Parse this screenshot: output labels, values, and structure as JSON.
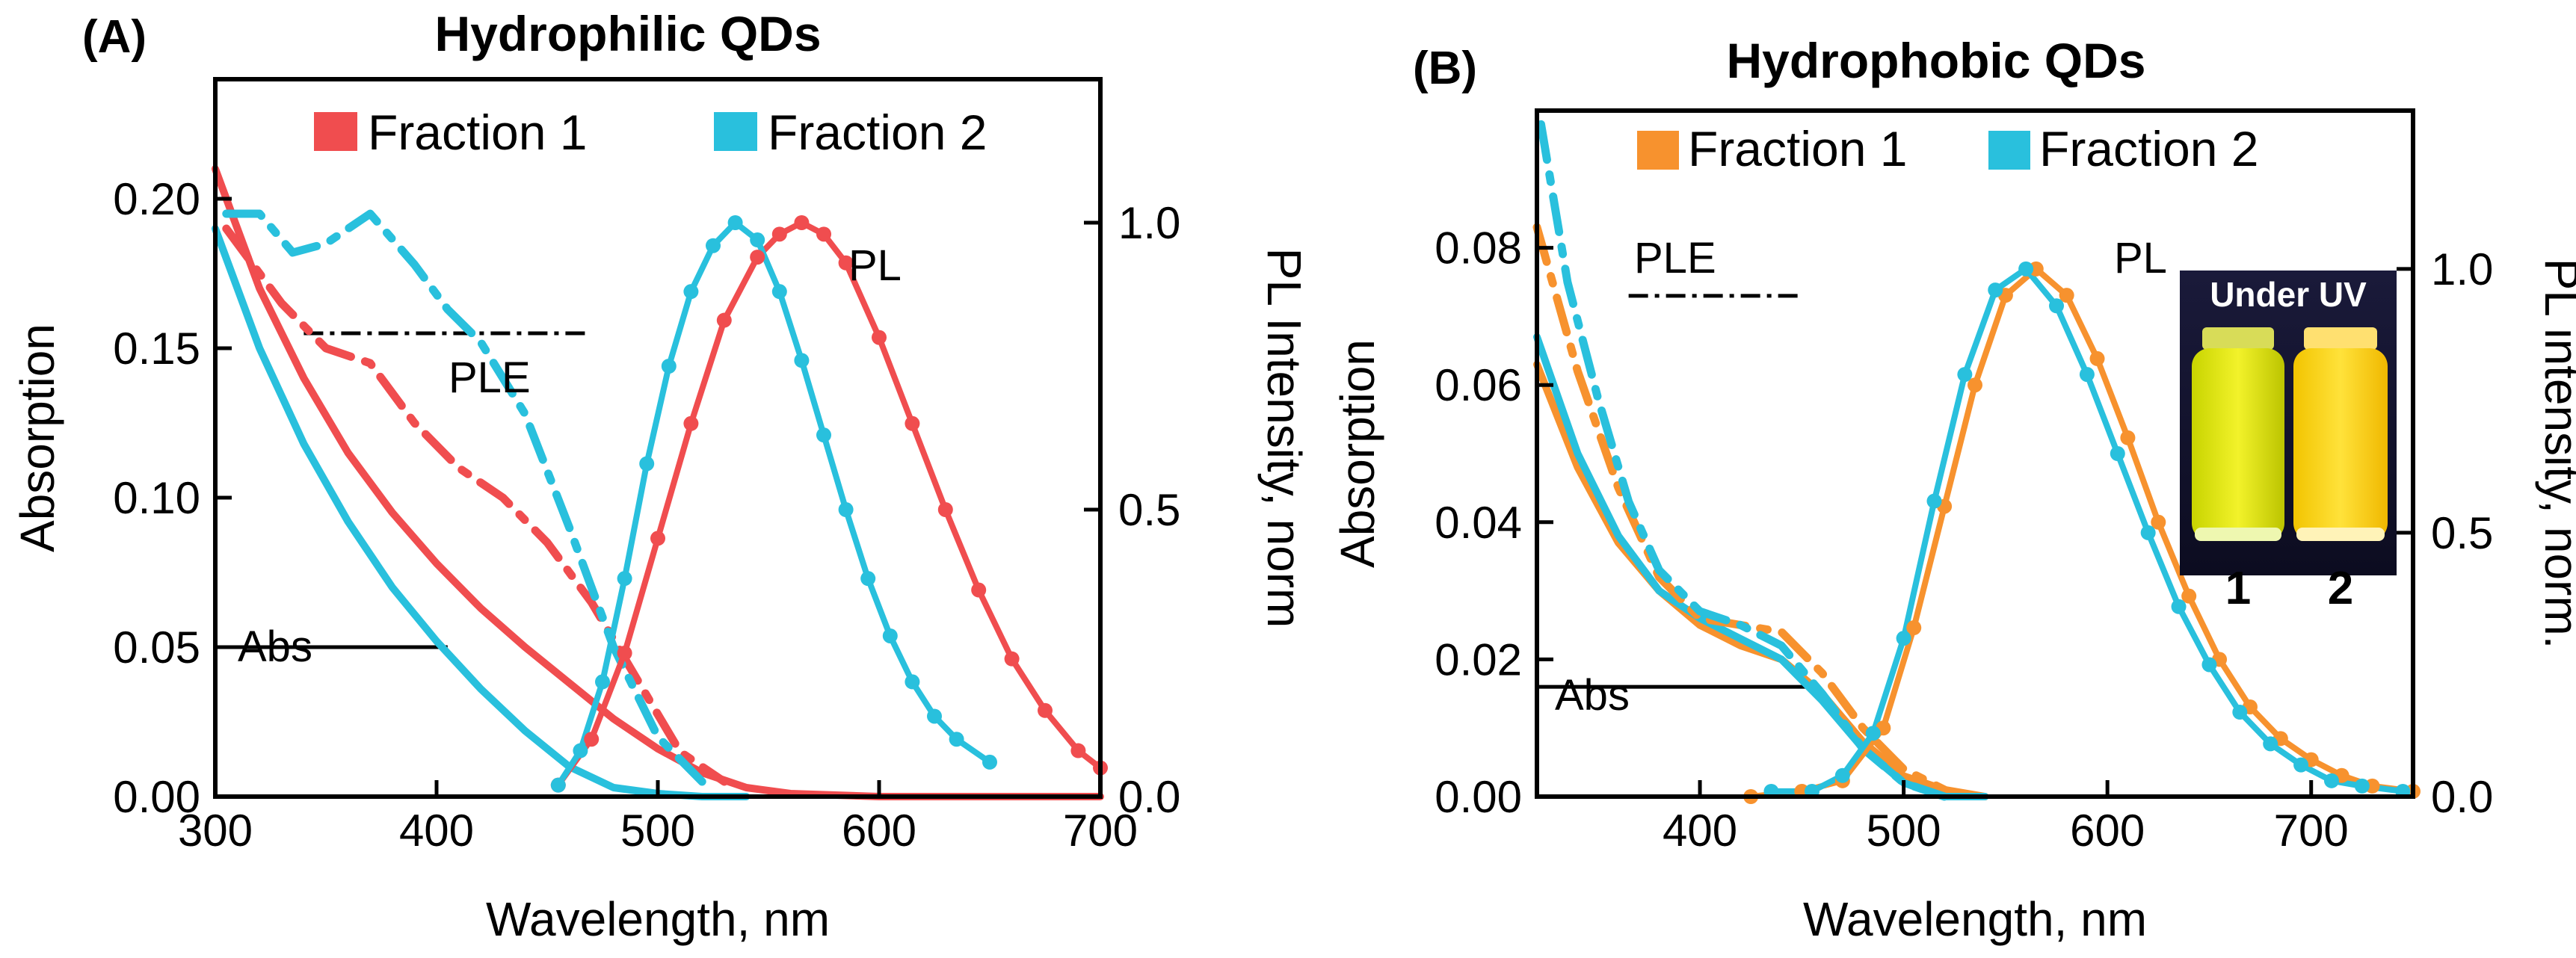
{
  "chart_data": [
    {
      "type": "line",
      "panel_label": "(A)",
      "title": "Hydrophilic QDs",
      "xlabel": "Wavelength, nm",
      "ylabel": "Absorption",
      "y2label": "PL Intensity, norm",
      "xlim": [
        300,
        700
      ],
      "ylim": [
        0,
        0.24
      ],
      "y2lim": [
        0,
        1.25
      ],
      "xticks": [
        "300",
        "400",
        "500",
        "600",
        "700"
      ],
      "yticks": [
        "0.00",
        "0.05",
        "0.10",
        "0.15",
        "0.20"
      ],
      "y2ticks": [
        "0.0",
        "0.5",
        "1.0"
      ],
      "legend": [
        {
          "label": "Fraction 1",
          "color": "#f04d4f"
        },
        {
          "label": "Fraction 2",
          "color": "#29c0dd"
        }
      ],
      "annotations": [
        {
          "text": "PL",
          "x": 585,
          "y2": 0.97
        },
        {
          "text": "PLE",
          "x": 420,
          "y": 0.157
        },
        {
          "text": "Abs",
          "x": 330,
          "y": 0.052
        }
      ],
      "indicator_lines": [
        {
          "style": "dashdot",
          "x": [
            340,
            470
          ],
          "y": 0.155
        },
        {
          "style": "solid",
          "x": [
            300,
            405
          ],
          "y": 0.05
        }
      ],
      "series": [
        {
          "name": "Fraction 1 Abs",
          "color": "#f04d4f",
          "style": "solid",
          "axis": "left",
          "x": [
            300,
            320,
            340,
            360,
            380,
            400,
            420,
            440,
            460,
            480,
            500,
            520,
            540,
            560,
            600,
            700
          ],
          "y": [
            0.21,
            0.17,
            0.14,
            0.115,
            0.095,
            0.078,
            0.063,
            0.05,
            0.038,
            0.026,
            0.016,
            0.008,
            0.003,
            0.001,
            0.0,
            0.0
          ]
        },
        {
          "name": "Fraction 2 Abs",
          "color": "#29c0dd",
          "style": "solid",
          "axis": "left",
          "x": [
            300,
            320,
            340,
            360,
            380,
            400,
            420,
            440,
            460,
            480,
            500,
            520,
            540
          ],
          "y": [
            0.19,
            0.15,
            0.118,
            0.092,
            0.07,
            0.052,
            0.036,
            0.022,
            0.01,
            0.003,
            0.001,
            0.0,
            0.0
          ]
        },
        {
          "name": "Fraction 1 PLE",
          "color": "#f04d4f",
          "style": "dashdot",
          "axis": "left",
          "x": [
            305,
            330,
            350,
            370,
            390,
            410,
            430,
            450,
            470,
            490,
            510,
            530
          ],
          "y": [
            0.19,
            0.165,
            0.15,
            0.145,
            0.125,
            0.11,
            0.1,
            0.085,
            0.065,
            0.04,
            0.015,
            0.005
          ]
        },
        {
          "name": "Fraction 2 PLE",
          "color": "#29c0dd",
          "style": "dashdot",
          "axis": "left",
          "x": [
            305,
            320,
            335,
            350,
            370,
            390,
            405,
            420,
            440,
            460,
            480,
            500,
            520
          ],
          "y": [
            0.195,
            0.195,
            0.182,
            0.185,
            0.195,
            0.178,
            0.163,
            0.152,
            0.128,
            0.09,
            0.05,
            0.02,
            0.005
          ]
        },
        {
          "name": "Fraction 1 PL",
          "color": "#f04d4f",
          "style": "marker-line",
          "axis": "right",
          "x": [
            455,
            470,
            485,
            500,
            515,
            530,
            545,
            555,
            565,
            575,
            585,
            600,
            615,
            630,
            645,
            660,
            675,
            690,
            700
          ],
          "y": [
            0.02,
            0.1,
            0.25,
            0.45,
            0.65,
            0.83,
            0.94,
            0.98,
            1.0,
            0.98,
            0.93,
            0.8,
            0.65,
            0.5,
            0.36,
            0.24,
            0.15,
            0.08,
            0.05
          ]
        },
        {
          "name": "Fraction 2 PL",
          "color": "#29c0dd",
          "style": "marker-line",
          "axis": "right",
          "x": [
            455,
            465,
            475,
            485,
            495,
            505,
            515,
            525,
            535,
            545,
            555,
            565,
            575,
            585,
            595,
            605,
            615,
            625,
            635,
            650
          ],
          "y": [
            0.02,
            0.08,
            0.2,
            0.38,
            0.58,
            0.75,
            0.88,
            0.96,
            1.0,
            0.97,
            0.88,
            0.76,
            0.63,
            0.5,
            0.38,
            0.28,
            0.2,
            0.14,
            0.1,
            0.06
          ]
        }
      ]
    },
    {
      "type": "line",
      "panel_label": "(B)",
      "title": "Hydrophobic QDs",
      "xlabel": "Wavelength, nm",
      "ylabel": "Absorption",
      "y2label": "PL intensity, norm.",
      "xlim": [
        320,
        750
      ],
      "ylim": [
        0,
        0.1
      ],
      "y2lim": [
        0,
        1.3
      ],
      "xticks": [
        "400",
        "500",
        "600",
        "700"
      ],
      "yticks": [
        "0.00",
        "0.02",
        "0.04",
        "0.06",
        "0.08"
      ],
      "y2ticks": [
        "0.0",
        "0.5",
        "1.0"
      ],
      "legend": [
        {
          "label": "Fraction 1",
          "color": "#f7922e"
        },
        {
          "label": "Fraction 2",
          "color": "#29c0dd"
        }
      ],
      "annotations": [
        {
          "text": "PL",
          "x": 590,
          "y2": 0.99
        },
        {
          "text": "PLE",
          "x": 390,
          "y": 0.075
        },
        {
          "text": "Abs",
          "x": 340,
          "y": 0.018
        }
      ],
      "indicator_lines": [
        {
          "style": "dashdot",
          "x": [
            365,
            450
          ],
          "y": 0.073
        },
        {
          "style": "solid",
          "x": [
            320,
            455
          ],
          "y": 0.016
        }
      ],
      "inset": {
        "title": "Under UV",
        "labels": [
          {
            "text": "1",
            "color": "#29c0dd"
          },
          {
            "text": "2",
            "color": "#f7922e"
          }
        ]
      },
      "series": [
        {
          "name": "Fraction 1 Abs",
          "color": "#f7922e",
          "style": "solid",
          "axis": "left",
          "x": [
            320,
            340,
            360,
            380,
            400,
            420,
            440,
            460,
            480,
            500,
            520,
            540
          ],
          "y": [
            0.063,
            0.048,
            0.037,
            0.03,
            0.025,
            0.022,
            0.02,
            0.015,
            0.008,
            0.003,
            0.001,
            0.0
          ]
        },
        {
          "name": "Fraction 2 Abs",
          "color": "#29c0dd",
          "style": "solid",
          "axis": "left",
          "x": [
            320,
            340,
            360,
            380,
            400,
            420,
            440,
            460,
            480,
            500,
            520,
            540
          ],
          "y": [
            0.067,
            0.05,
            0.038,
            0.03,
            0.026,
            0.023,
            0.02,
            0.014,
            0.007,
            0.002,
            0.0,
            0.0
          ]
        },
        {
          "name": "Fraction 1 PLE",
          "color": "#f7922e",
          "style": "dashdot",
          "axis": "left",
          "x": [
            320,
            340,
            360,
            380,
            400,
            420,
            440,
            460,
            480,
            500,
            520
          ],
          "y": [
            0.083,
            0.062,
            0.045,
            0.032,
            0.026,
            0.025,
            0.024,
            0.018,
            0.01,
            0.004,
            0.001
          ]
        },
        {
          "name": "Fraction 2 PLE",
          "color": "#29c0dd",
          "style": "dashdot",
          "axis": "left",
          "x": [
            322,
            335,
            350,
            365,
            380,
            400,
            420,
            440,
            460,
            480,
            500,
            520
          ],
          "y": [
            0.098,
            0.075,
            0.058,
            0.043,
            0.033,
            0.027,
            0.025,
            0.022,
            0.015,
            0.007,
            0.002,
            0.0
          ]
        },
        {
          "name": "Fraction 1 PL",
          "color": "#f7922e",
          "style": "marker-line",
          "axis": "right",
          "x": [
            425,
            450,
            470,
            490,
            505,
            520,
            535,
            550,
            565,
            580,
            595,
            610,
            625,
            640,
            655,
            670,
            685,
            700,
            715,
            730,
            750
          ],
          "y": [
            0.0,
            0.01,
            0.03,
            0.13,
            0.32,
            0.55,
            0.78,
            0.95,
            1.0,
            0.95,
            0.83,
            0.68,
            0.52,
            0.38,
            0.26,
            0.17,
            0.11,
            0.07,
            0.04,
            0.02,
            0.01
          ]
        },
        {
          "name": "Fraction 2 PL",
          "color": "#29c0dd",
          "style": "marker-line",
          "axis": "right",
          "x": [
            435,
            455,
            470,
            485,
            500,
            515,
            530,
            545,
            560,
            575,
            590,
            605,
            620,
            635,
            650,
            665,
            680,
            695,
            710,
            725,
            745
          ],
          "y": [
            0.01,
            0.01,
            0.04,
            0.12,
            0.3,
            0.56,
            0.8,
            0.96,
            1.0,
            0.93,
            0.8,
            0.65,
            0.5,
            0.36,
            0.25,
            0.16,
            0.1,
            0.06,
            0.03,
            0.02,
            0.01
          ]
        }
      ]
    }
  ]
}
